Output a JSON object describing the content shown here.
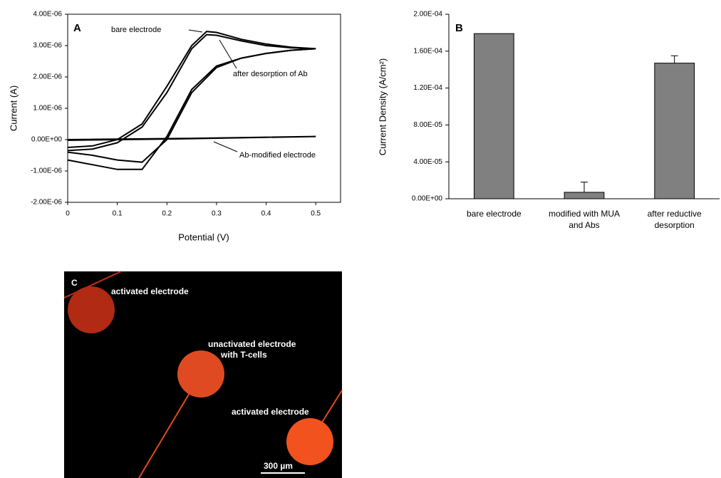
{
  "chart_data": [
    {
      "type": "line",
      "label": "A",
      "xlabel": "Potential (V)",
      "ylabel": "Current (A)",
      "xlim": [
        0,
        0.55
      ],
      "xticks": [
        0,
        0.1,
        0.2,
        0.3,
        0.4,
        0.5
      ],
      "ylim": [
        -2e-06,
        4e-06
      ],
      "yticks": [
        {
          "value": -2e-06,
          "label": "-2.00E-06"
        },
        {
          "value": -1e-06,
          "label": "-1.00E-06"
        },
        {
          "value": 0,
          "label": "0.00E+00"
        },
        {
          "value": 1e-06,
          "label": "1.00E-06"
        },
        {
          "value": 2e-06,
          "label": "2.00E-06"
        },
        {
          "value": 3e-06,
          "label": "3.00E-06"
        },
        {
          "value": 4e-06,
          "label": "4.00E-06"
        }
      ],
      "series": [
        {
          "name": "bare electrode",
          "color": "#000000",
          "x": [
            0,
            0.05,
            0.1,
            0.15,
            0.2,
            0.25,
            0.28,
            0.3,
            0.35,
            0.4,
            0.45,
            0.5,
            0.45,
            0.4,
            0.35,
            0.3,
            0.25,
            0.2,
            0.15,
            0.1,
            0.05,
            0
          ],
          "values": [
            -2.5e-07,
            -2e-07,
            0,
            5e-07,
            1.7e-06,
            3e-06,
            3.45e-06,
            3.42e-06,
            3.2e-06,
            3.05e-06,
            2.95e-06,
            2.9e-06,
            2.85e-06,
            2.75e-06,
            2.6e-06,
            2.35e-06,
            1.6e-06,
            1e-07,
            -9.5e-07,
            -9.5e-07,
            -8e-07,
            -6.5e-07
          ]
        },
        {
          "name": "after desorption of Ab",
          "color": "#000000",
          "x": [
            0,
            0.05,
            0.1,
            0.15,
            0.2,
            0.25,
            0.28,
            0.3,
            0.35,
            0.4,
            0.45,
            0.5,
            0.45,
            0.4,
            0.35,
            0.3,
            0.25,
            0.2,
            0.15,
            0.1,
            0.05,
            0
          ],
          "values": [
            -3.5e-07,
            -3e-07,
            -1e-07,
            4e-07,
            1.5e-06,
            2.9e-06,
            3.35e-06,
            3.33e-06,
            3.15e-06,
            3e-06,
            2.93e-06,
            2.9e-06,
            2.85e-06,
            2.75e-06,
            2.6e-06,
            2.3e-06,
            1.5e-06,
            0,
            -7.2e-07,
            -6.5e-07,
            -5e-07,
            -4e-07
          ]
        },
        {
          "name": "Ab-modified electrode",
          "color": "#000000",
          "x": [
            0,
            0.25,
            0.5,
            0.25,
            0
          ],
          "values": [
            0,
            4e-08,
            1e-07,
            3e-08,
            -2e-08
          ]
        }
      ]
    },
    {
      "type": "bar",
      "label": "B",
      "ylabel": "Current Density (A/cm²)",
      "color": "#808080",
      "categories": [
        "bare electrode",
        "modified with MUA and Abs",
        "after reductive desorption"
      ],
      "values": [
        0.000179,
        7e-06,
        0.000147
      ],
      "errors": [
        null,
        1.1e-05,
        8e-06
      ],
      "ylim": [
        0,
        0.0002
      ],
      "yticks": [
        {
          "value": 0,
          "label": "0.00E+00"
        },
        {
          "value": 4e-05,
          "label": "4.00E-05"
        },
        {
          "value": 8e-05,
          "label": "8.00E-05"
        },
        {
          "value": 0.00012,
          "label": "1.20E-04"
        },
        {
          "value": 0.00016,
          "label": "1.60E-04"
        },
        {
          "value": 0.0002,
          "label": "2.00E-04"
        }
      ]
    }
  ],
  "image_panel": {
    "label": "C",
    "annotations": [
      "activated electrode",
      "unactivated electrode",
      "with T-cells",
      "activated electrode"
    ],
    "scale_bar": "300 µm"
  }
}
